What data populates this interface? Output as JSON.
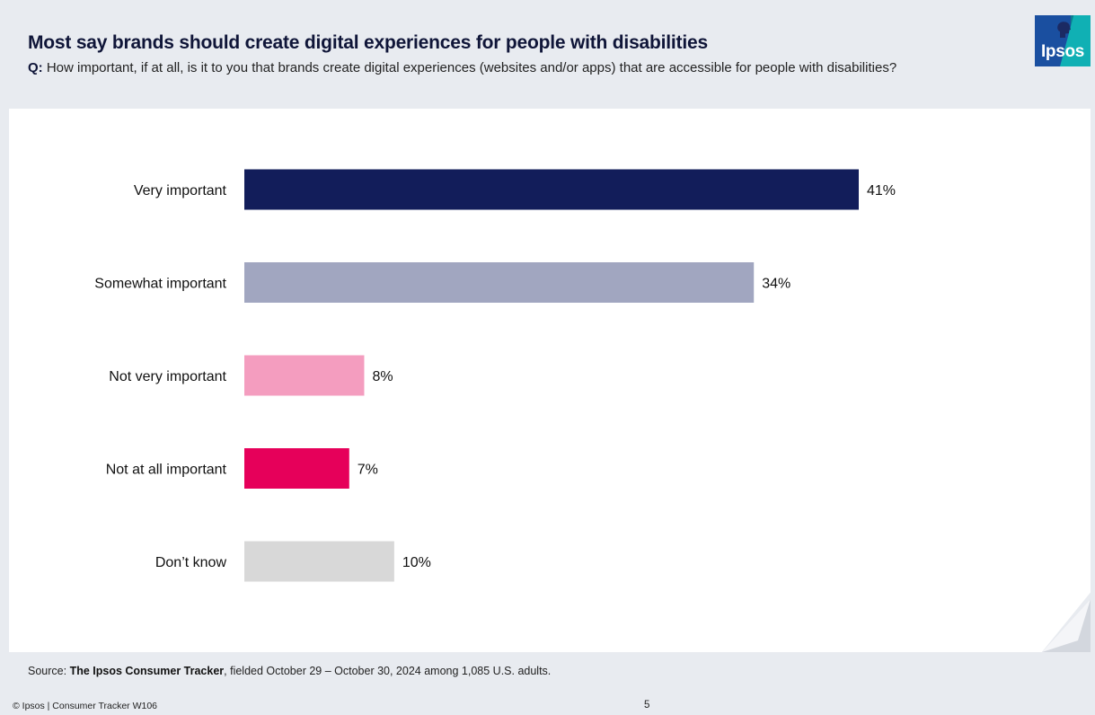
{
  "header": {
    "title": "Most say brands should create digital experiences for people with disabilities",
    "question_prefix": "Q:",
    "question": " How important, if at all, is it to you that brands create digital experiences (websites and/or apps) that are accessible for people with disabilities?"
  },
  "logo": {
    "text": "Ipsos"
  },
  "chart_data": {
    "type": "bar",
    "orientation": "horizontal",
    "title": "",
    "xlabel": "",
    "ylabel": "",
    "xlim": [
      0,
      41
    ],
    "grid": false,
    "categories": [
      "Very  important",
      "Somewhat important",
      "Not very important",
      "Not at all important",
      "Don’t know"
    ],
    "values": [
      41,
      34,
      8,
      7,
      10
    ],
    "value_labels": [
      "41%",
      "34%",
      "8%",
      "7%",
      "10%"
    ],
    "colors": [
      "#121d5a",
      "#a1a6c0",
      "#f49dbf",
      "#e6005a",
      "#d8d8d8"
    ]
  },
  "source": {
    "prefix": "Source: ",
    "name": "The Ipsos Consumer Tracker",
    "detail": ", fielded October 29 – October 30, 2024 among 1,085 U.S. adults."
  },
  "footer": {
    "copyright": "© Ipsos | Consumer Tracker W106",
    "page_number": "5"
  },
  "colors": {
    "background": "#e8ebf0",
    "panel": "#ffffff",
    "title": "#0f1538"
  }
}
